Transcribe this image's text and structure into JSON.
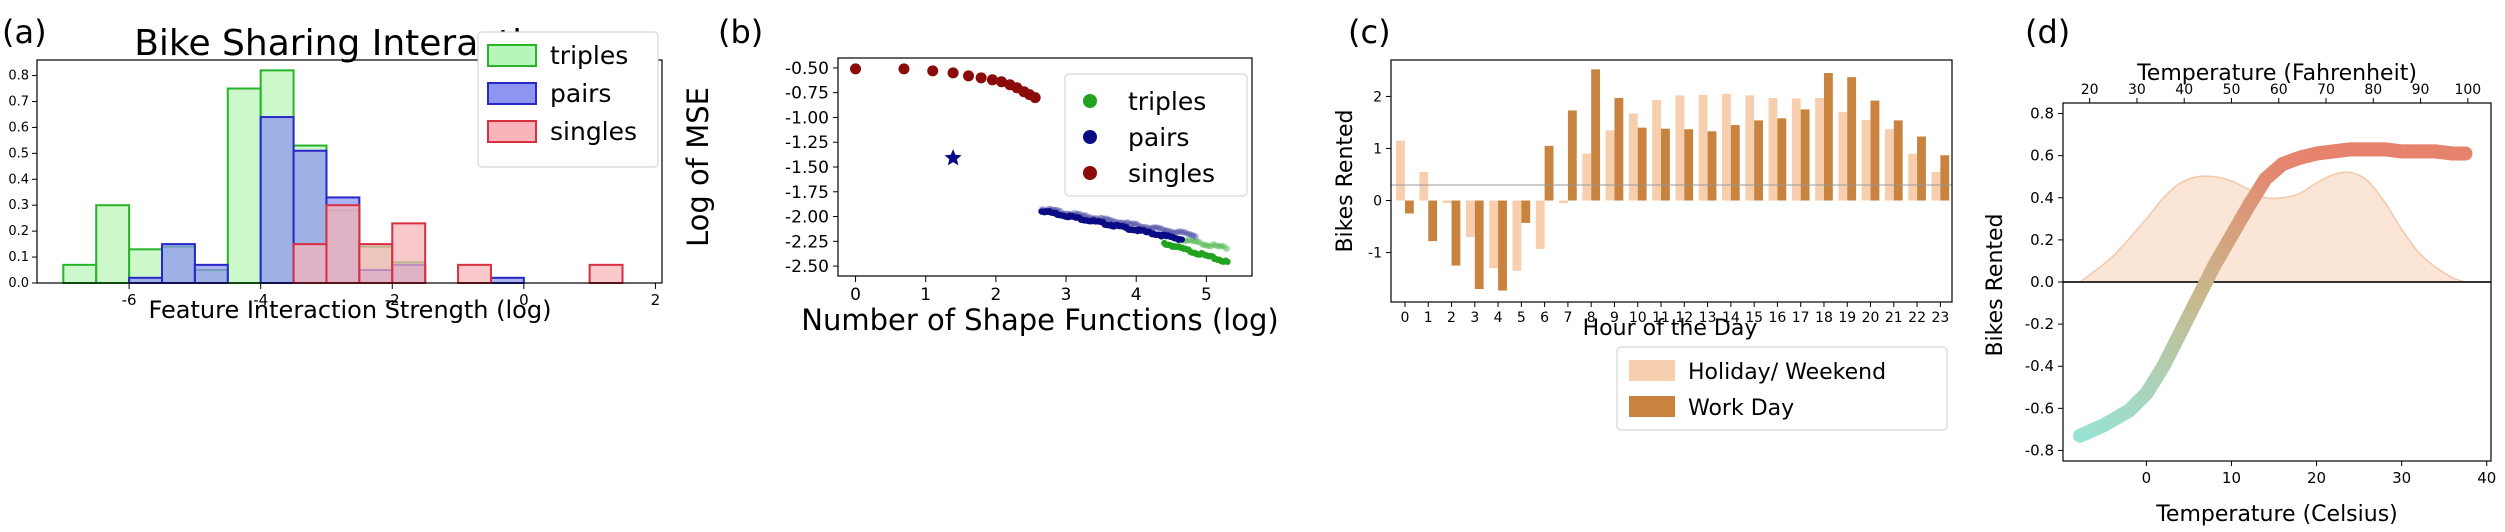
{
  "chart_data": [
    {
      "panel_label": "(a)",
      "type": "bar",
      "title": "Bike Sharing Interactions",
      "xlabel": "Feature Interaction Strength (log)",
      "ylabel": "",
      "xlim": [
        -7.4,
        2.1
      ],
      "ylim": [
        0,
        0.86
      ],
      "xticks": [
        "-6",
        "-4",
        "-2",
        "0",
        "2"
      ],
      "yticks": [
        "0.0",
        "0.1",
        "0.2",
        "0.3",
        "0.4",
        "0.5",
        "0.6",
        "0.7",
        "0.8"
      ],
      "legend_position": "top-right",
      "series": [
        {
          "name": "triples",
          "color": "#28b428",
          "fill": "#b8f5b8",
          "bins": [
            [
              -7.0,
              -6.5,
              0.07
            ],
            [
              -6.5,
              -6.0,
              0.3
            ],
            [
              -6.0,
              -5.5,
              0.13
            ],
            [
              -5.5,
              -5.0,
              0.14
            ],
            [
              -5.0,
              -4.5,
              0.05
            ],
            [
              -4.5,
              -4.0,
              0.75
            ],
            [
              -4.0,
              -3.5,
              0.82
            ],
            [
              -3.5,
              -3.0,
              0.53
            ],
            [
              -3.0,
              -2.5,
              0.28
            ],
            [
              -2.5,
              -2.0,
              0.14
            ],
            [
              -2.0,
              -1.5,
              0.08
            ]
          ]
        },
        {
          "name": "pairs",
          "color": "#2828c8",
          "fill": "#8c96f0",
          "bins": [
            [
              -6.0,
              -5.5,
              0.02
            ],
            [
              -5.5,
              -5.0,
              0.15
            ],
            [
              -5.0,
              -4.5,
              0.07
            ],
            [
              -4.0,
              -3.5,
              0.64
            ],
            [
              -3.5,
              -3.0,
              0.51
            ],
            [
              -3.0,
              -2.5,
              0.33
            ],
            [
              -2.5,
              -2.0,
              0.05
            ],
            [
              -2.0,
              -1.5,
              0.07
            ],
            [
              -0.5,
              0.0,
              0.02
            ]
          ]
        },
        {
          "name": "singles",
          "color": "#d83040",
          "fill": "#f8b4b8",
          "bins": [
            [
              -3.5,
              -3.0,
              0.15
            ],
            [
              -3.0,
              -2.5,
              0.3
            ],
            [
              -2.5,
              -2.0,
              0.15
            ],
            [
              -2.0,
              -1.5,
              0.23
            ],
            [
              -1.0,
              -0.5,
              0.07
            ],
            [
              1.0,
              1.5,
              0.07
            ]
          ]
        }
      ]
    },
    {
      "panel_label": "(b)",
      "type": "scatter",
      "xlabel": "Number of Shape Functions (log)",
      "ylabel": "Log of MSE",
      "xlim": [
        -0.25,
        5.65
      ],
      "ylim": [
        -2.6,
        -0.4
      ],
      "xticks": [
        "0",
        "1",
        "2",
        "3",
        "4",
        "5"
      ],
      "yticks": [
        "-0.50",
        "-0.75",
        "-1.00",
        "-1.25",
        "-1.50",
        "-1.75",
        "-2.00",
        "-2.25",
        "-2.50"
      ],
      "legend_position": "top-right",
      "series": [
        {
          "name": "triples",
          "color": "#21a321",
          "x": [
            4.4,
            5.3
          ],
          "y": [
            -2.27,
            -2.46
          ],
          "x_faint": [
            4.4,
            5.3
          ],
          "y_faint": [
            -2.2,
            -2.32
          ]
        },
        {
          "name": "pairs",
          "color": "#0b0b85",
          "x": [
            2.65,
            4.65
          ],
          "y": [
            -1.94,
            -2.23
          ],
          "x_faint": [
            2.65,
            4.85
          ],
          "y_faint": [
            -1.92,
            -2.19
          ]
        },
        {
          "name": "singles",
          "color": "#8b0a0a",
          "points": [
            [
              0.0,
              -0.51
            ],
            [
              0.69,
              -0.51
            ],
            [
              1.1,
              -0.53
            ],
            [
              1.39,
              -0.55
            ],
            [
              1.61,
              -0.58
            ],
            [
              1.79,
              -0.6
            ],
            [
              1.95,
              -0.62
            ],
            [
              2.08,
              -0.64
            ],
            [
              2.2,
              -0.67
            ],
            [
              2.3,
              -0.7
            ],
            [
              2.4,
              -0.74
            ],
            [
              2.48,
              -0.77
            ],
            [
              2.56,
              -0.8
            ]
          ]
        },
        {
          "name": "",
          "color": "#0b0b85",
          "marker": "star",
          "points": [
            [
              1.39,
              -1.41
            ]
          ]
        }
      ]
    },
    {
      "panel_label": "(c)",
      "type": "bar",
      "xlabel": "Hour of the Day",
      "ylabel": "Bikes Rented",
      "xlim": [
        -0.6,
        23.5
      ],
      "ylim": [
        -1.95,
        2.7
      ],
      "yticks": [
        "-1",
        "0",
        "1",
        "2"
      ],
      "categories": [
        "0",
        "1",
        "2",
        "3",
        "4",
        "5",
        "6",
        "7",
        "8",
        "9",
        "10",
        "11",
        "12",
        "13",
        "14",
        "15",
        "16",
        "17",
        "18",
        "19",
        "20",
        "21",
        "22",
        "23"
      ],
      "legend_position": "lower-right",
      "series": [
        {
          "name": "Holiday/ Weekend",
          "color": "#f7cfae",
          "values": [
            1.15,
            0.55,
            -0.05,
            -0.7,
            -1.3,
            -1.35,
            -0.93,
            -0.05,
            0.9,
            1.35,
            1.67,
            1.93,
            2.02,
            2.03,
            2.05,
            2.02,
            1.97,
            1.96,
            1.97,
            1.7,
            1.55,
            1.37,
            0.9,
            0.55
          ]
        },
        {
          "name": "Work Day",
          "color": "#c8843f",
          "values": [
            -0.25,
            -0.78,
            -1.25,
            -1.7,
            -1.73,
            -0.43,
            1.05,
            1.73,
            2.52,
            1.97,
            1.4,
            1.38,
            1.37,
            1.33,
            1.45,
            1.54,
            1.58,
            1.75,
            2.45,
            2.37,
            1.92,
            1.54,
            1.23,
            0.87
          ]
        }
      ]
    },
    {
      "panel_label": "(d)",
      "type": "line",
      "xlabel": "Temperature (Celsius)",
      "x2label": "Temperature (Fahrenheit)",
      "ylabel": "Bikes Rented",
      "xlim": [
        -9.8,
        40.5
      ],
      "ylim": [
        -0.85,
        0.85
      ],
      "xticks": [
        "0",
        "10",
        "20",
        "30",
        "40"
      ],
      "x2ticks": [
        "20",
        "30",
        "40",
        "50",
        "60",
        "70",
        "80",
        "90",
        "100"
      ],
      "yticks": [
        "-0.8",
        "-0.6",
        "-0.4",
        "-0.2",
        "0.0",
        "0.2",
        "0.4",
        "0.6",
        "0.8"
      ],
      "curve": {
        "x": [
          -7.8,
          -5,
          -2,
          0,
          2,
          4,
          6,
          8,
          10,
          12,
          14,
          16,
          18,
          20,
          22,
          24,
          26,
          28,
          30,
          32,
          34,
          36,
          37.5
        ],
        "y": [
          -0.73,
          -0.68,
          -0.61,
          -0.53,
          -0.4,
          -0.24,
          -0.08,
          0.08,
          0.22,
          0.36,
          0.49,
          0.56,
          0.59,
          0.61,
          0.62,
          0.63,
          0.63,
          0.63,
          0.62,
          0.62,
          0.62,
          0.61,
          0.61
        ]
      },
      "density": {
        "x": [
          -7.8,
          -4,
          0,
          2,
          4,
          6,
          8,
          10,
          12,
          14,
          16,
          18,
          20,
          22,
          24,
          26,
          28,
          30,
          32,
          34,
          36,
          37.5
        ],
        "y": [
          0.0,
          0.12,
          0.3,
          0.4,
          0.47,
          0.5,
          0.5,
          0.48,
          0.44,
          0.4,
          0.4,
          0.42,
          0.47,
          0.51,
          0.52,
          0.48,
          0.38,
          0.25,
          0.14,
          0.07,
          0.02,
          0.0
        ]
      },
      "colors": {
        "low": "#98e3d6",
        "mid": "#c8b88c",
        "high": "#e8806b",
        "density": "#f8dcc8"
      }
    }
  ]
}
